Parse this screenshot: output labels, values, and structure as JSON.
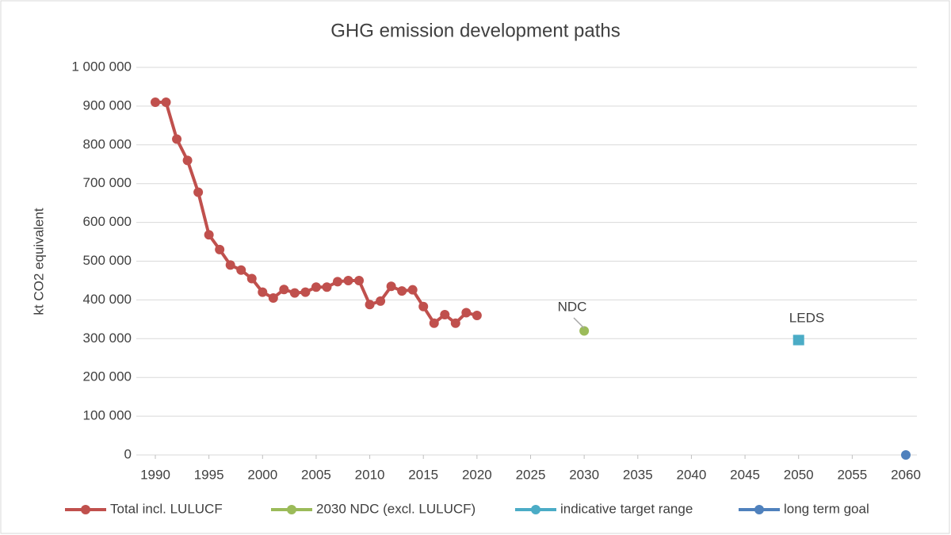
{
  "chart_data": {
    "type": "line",
    "title": "GHG emission development paths",
    "y_label": "kt CO2 equivalent",
    "xlim": [
      1990,
      2060
    ],
    "xticks": [
      1990,
      1995,
      2000,
      2005,
      2010,
      2015,
      2020,
      2025,
      2030,
      2035,
      2040,
      2045,
      2050,
      2055,
      2060
    ],
    "ylim": [
      0,
      1000000
    ],
    "yticks": [
      {
        "value": 0,
        "label": "0"
      },
      {
        "value": 100000,
        "label": "100 000"
      },
      {
        "value": 200000,
        "label": "200 000"
      },
      {
        "value": 300000,
        "label": "300 000"
      },
      {
        "value": 400000,
        "label": "400 000"
      },
      {
        "value": 500000,
        "label": "500 000"
      },
      {
        "value": 600000,
        "label": "600 000"
      },
      {
        "value": 700000,
        "label": "700 000"
      },
      {
        "value": 800000,
        "label": "800 000"
      },
      {
        "value": 900000,
        "label": "900 000"
      },
      {
        "value": 1000000,
        "label": "1 000 000"
      }
    ],
    "grid": true,
    "legend": "bottom",
    "series": [
      {
        "name": "Total incl. LULUCF",
        "color": "#c0504d",
        "x": [
          1990,
          1991,
          1992,
          1993,
          1994,
          1995,
          1996,
          1997,
          1998,
          1999,
          2000,
          2001,
          2002,
          2003,
          2004,
          2005,
          2006,
          2007,
          2008,
          2009,
          2010,
          2011,
          2012,
          2013,
          2014,
          2015,
          2016,
          2017,
          2018,
          2019,
          2020
        ],
        "values": [
          910000,
          910000,
          815000,
          760000,
          678000,
          568000,
          530000,
          490000,
          477000,
          455000,
          420000,
          405000,
          427000,
          418000,
          420000,
          433000,
          433000,
          447000,
          450000,
          450000,
          388000,
          397000,
          435000,
          423000,
          426000,
          383000,
          340000,
          362000,
          340000,
          367000,
          360000
        ]
      },
      {
        "name": "2030 NDC (excl. LULUCF)",
        "color": "#9bbb59",
        "x": [
          2030
        ],
        "values": [
          320000
        ]
      },
      {
        "name": "indicative target range",
        "color": "#4bacc6",
        "x": [
          2050,
          2050
        ],
        "values": [
          283000,
          310000
        ]
      },
      {
        "name": "long term goal",
        "color": "#4f81bd",
        "x": [
          2060
        ],
        "values": [
          0
        ]
      }
    ],
    "annotations": [
      {
        "text": "NDC"
      },
      {
        "text": "LEDS"
      }
    ]
  }
}
